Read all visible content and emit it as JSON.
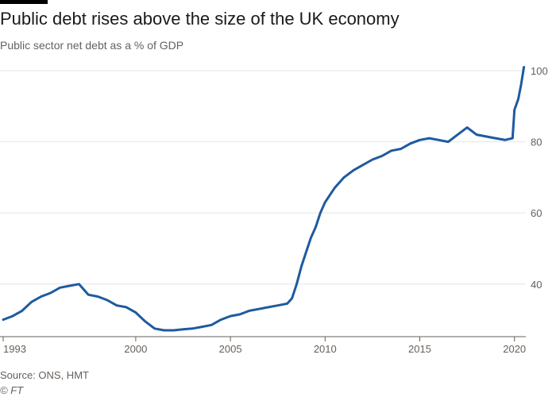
{
  "header": {
    "title": "Public debt rises above the size of the UK economy",
    "subtitle": "Public sector net debt as a % of GDP"
  },
  "footer": {
    "source": "Source: ONS, HMT",
    "credit": "© FT"
  },
  "colors": {
    "line": "#1e5aa0",
    "grid": "#e6e4e1",
    "axis": "#66605c",
    "brand_bar": "#000000"
  },
  "chart_data": {
    "type": "line",
    "title": "Public debt rises above the size of the UK economy",
    "subtitle": "Public sector net debt as a % of GDP",
    "xlabel": "",
    "ylabel": "",
    "xlim": [
      1993.0,
      2020.6
    ],
    "ylim": [
      25,
      102
    ],
    "x_ticks": [
      1993,
      2000,
      2005,
      2010,
      2015,
      2020
    ],
    "y_ticks": [
      40,
      60,
      80,
      100
    ],
    "y_axis_position": "right",
    "grid": "horizontal",
    "series": [
      {
        "x": [
          1993.0,
          1993.5,
          1994.0,
          1994.5,
          1995.0,
          1995.5,
          1996.0,
          1996.5,
          1997.0,
          1997.5,
          1998.0,
          1998.5,
          1999.0,
          1999.5,
          2000.0,
          2000.5,
          2001.0,
          2001.5,
          2002.0,
          2002.5,
          2003.0,
          2003.5,
          2004.0,
          2004.5,
          2005.0,
          2005.5,
          2006.0,
          2006.5,
          2007.0,
          2007.5,
          2008.0,
          2008.25,
          2008.5,
          2008.75,
          2009.0,
          2009.25,
          2009.5,
          2009.75,
          2010.0,
          2010.5,
          2011.0,
          2011.5,
          2012.0,
          2012.5,
          2013.0,
          2013.5,
          2014.0,
          2014.5,
          2015.0,
          2015.5,
          2016.0,
          2016.5,
          2017.0,
          2017.5,
          2018.0,
          2018.5,
          2019.0,
          2019.5,
          2019.9,
          2020.0,
          2020.2,
          2020.35,
          2020.5
        ],
        "values": [
          30,
          31,
          32.5,
          35,
          36.5,
          37.5,
          39,
          39.5,
          40,
          37,
          36.5,
          35.5,
          34,
          33.5,
          32,
          29.5,
          27.5,
          27,
          27,
          27.3,
          27.5,
          28,
          28.5,
          30,
          31,
          31.5,
          32.5,
          33,
          33.5,
          34,
          34.5,
          36,
          40,
          45,
          49,
          53,
          56,
          60,
          63,
          67,
          70,
          72,
          73.5,
          75,
          76,
          77.5,
          78,
          79.5,
          80.5,
          81,
          80.5,
          80,
          82,
          84,
          82,
          81.5,
          81,
          80.5,
          81,
          89,
          92,
          96,
          101
        ]
      }
    ]
  }
}
